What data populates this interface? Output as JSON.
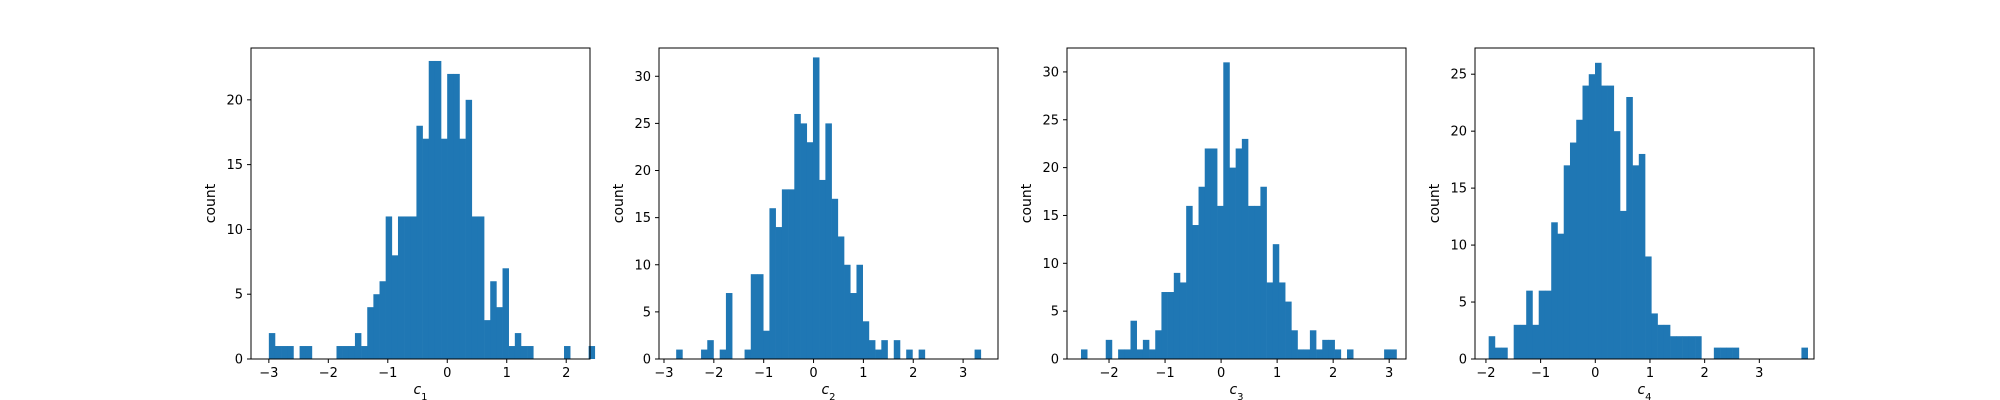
{
  "figure": {
    "background": "#ffffff"
  },
  "chart_data": [
    {
      "type": "bar",
      "ylabel": "count",
      "xlabel": {
        "base": "c",
        "sub": "1"
      },
      "bar_color": "#1f77b4",
      "xlim": [
        -3.3,
        2.4
      ],
      "ylim": [
        0,
        24
      ],
      "xticks": [
        -3,
        -2,
        -1,
        0,
        1,
        2
      ],
      "yticks": [
        0,
        5,
        10,
        15,
        20
      ],
      "bin_start": -3.0,
      "bin_width": 0.1034,
      "values": [
        2,
        1,
        1,
        1,
        0,
        1,
        1,
        0,
        0,
        0,
        0,
        1,
        1,
        1,
        2,
        1,
        4,
        5,
        6,
        11,
        8,
        11,
        11,
        11,
        18,
        17,
        23,
        23,
        17,
        22,
        22,
        17,
        20,
        11,
        11,
        3,
        6,
        4,
        7,
        1,
        2,
        1,
        1,
        0,
        0,
        0,
        0,
        0,
        1,
        0,
        0,
        0,
        1
      ]
    },
    {
      "type": "bar",
      "ylabel": "count",
      "xlabel": {
        "base": "c",
        "sub": "2"
      },
      "bar_color": "#1f77b4",
      "xlim": [
        -3.1,
        3.7
      ],
      "ylim": [
        0,
        33
      ],
      "xticks": [
        -3,
        -2,
        -1,
        0,
        1,
        2,
        3
      ],
      "yticks": [
        0,
        5,
        10,
        15,
        20,
        25,
        30
      ],
      "bin_start": -2.88,
      "bin_width": 0.1247,
      "values": [
        0,
        1,
        0,
        0,
        0,
        1,
        2,
        0,
        1,
        7,
        0,
        0,
        1,
        9,
        9,
        3,
        16,
        14,
        18,
        18,
        26,
        25,
        23,
        32,
        19,
        25,
        17,
        13,
        10,
        7,
        10,
        4,
        2,
        1,
        2,
        0,
        2,
        0,
        1,
        0,
        1,
        0,
        0,
        0,
        0,
        0,
        0,
        0,
        0,
        1
      ]
    },
    {
      "type": "bar",
      "ylabel": "count",
      "xlabel": {
        "base": "c",
        "sub": "3"
      },
      "bar_color": "#1f77b4",
      "xlim": [
        -2.75,
        3.3
      ],
      "ylim": [
        0,
        32.5
      ],
      "xticks": [
        -2,
        -1,
        0,
        1,
        2,
        3
      ],
      "yticks": [
        0,
        5,
        10,
        15,
        20,
        25,
        30
      ],
      "bin_start": -2.5,
      "bin_width": 0.1104,
      "values": [
        1,
        0,
        0,
        0,
        2,
        0,
        1,
        1,
        4,
        1,
        2,
        1,
        3,
        7,
        7,
        9,
        8,
        16,
        14,
        18,
        22,
        22,
        16,
        31,
        20,
        22,
        23,
        16,
        16,
        18,
        8,
        12,
        8,
        6,
        3,
        1,
        1,
        3,
        1,
        2,
        2,
        1,
        0,
        1,
        0,
        0,
        0,
        0,
        0,
        1,
        1
      ]
    },
    {
      "type": "bar",
      "ylabel": "count",
      "xlabel": {
        "base": "c",
        "sub": "4"
      },
      "bar_color": "#1f77b4",
      "xlim": [
        -2.2,
        4.0
      ],
      "ylim": [
        0,
        27.3
      ],
      "xticks": [
        -2,
        -1,
        0,
        1,
        2,
        3
      ],
      "yticks": [
        0,
        5,
        10,
        15,
        20,
        25
      ],
      "bin_start": -1.95,
      "bin_width": 0.1144,
      "values": [
        2,
        1,
        1,
        0,
        3,
        3,
        6,
        3,
        6,
        6,
        12,
        11,
        17,
        19,
        21,
        24,
        25,
        26,
        24,
        24,
        20,
        13,
        23,
        17,
        18,
        9,
        4,
        3,
        3,
        2,
        2,
        2,
        2,
        2,
        0,
        0,
        1,
        1,
        1,
        1,
        0,
        0,
        0,
        0,
        0,
        0,
        0,
        0,
        0,
        0,
        1
      ]
    }
  ]
}
